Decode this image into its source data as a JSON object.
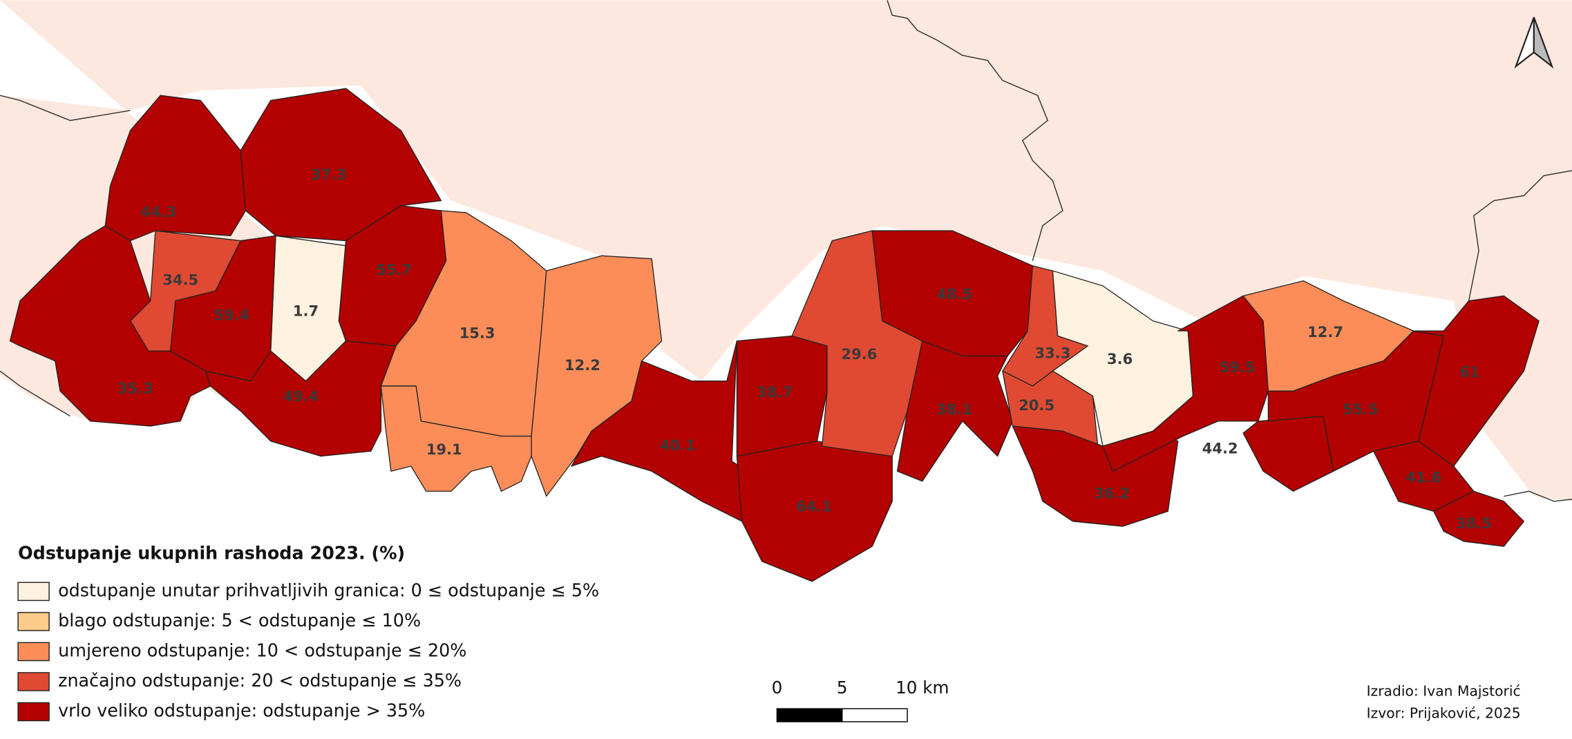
{
  "map": {
    "regions": [
      {
        "label": 44.3,
        "color": "#b30000"
      },
      {
        "label": 37.3,
        "color": "#b30000"
      },
      {
        "label": 34.5,
        "color": "#e04a32"
      },
      {
        "label": 1.7,
        "color": "#fdf1df"
      },
      {
        "label": 55.7,
        "color": "#b30000"
      },
      {
        "label": 59.4,
        "color": "#b30000"
      },
      {
        "label": 35.3,
        "color": "#b30000"
      },
      {
        "label": 49.4,
        "color": "#b30000"
      },
      {
        "label": 15.3,
        "color": "#fc8d59"
      },
      {
        "label": 12.2,
        "color": "#fc8d59"
      },
      {
        "label": 19.1,
        "color": "#fc8d59"
      },
      {
        "label": 40.1,
        "color": "#b30000"
      },
      {
        "label": 38.7,
        "color": "#b30000"
      },
      {
        "label": 64.1,
        "color": "#b30000"
      },
      {
        "label": 29.6,
        "color": "#e04a32"
      },
      {
        "label": 48.5,
        "color": "#b30000"
      },
      {
        "label": 38.1,
        "color": "#b30000"
      },
      {
        "label": 33.3,
        "color": "#e04a32"
      },
      {
        "label": 3.6,
        "color": "#fdf1df"
      },
      {
        "label": 20.5,
        "color": "#e04a32"
      },
      {
        "label": 36.2,
        "color": "#b30000"
      },
      {
        "label": 59.5,
        "color": "#b30000"
      },
      {
        "label": 44.2,
        "color": "#b30000"
      },
      {
        "label": 12.7,
        "color": "#fc8d59"
      },
      {
        "label": 55.5,
        "color": "#b30000"
      },
      {
        "label": 61,
        "color": "#b30000"
      },
      {
        "label": 41.6,
        "color": "#b30000"
      },
      {
        "label": 38.5,
        "color": "#b30000"
      }
    ],
    "legend": {
      "title": "Odstupanje ukupnih rashoda 2023. (%)",
      "items": [
        {
          "label": "odstupanje unutar prihvatljivih granica: 0 ≤ odstupanje ≤ 5%",
          "color": "#fdf1df"
        },
        {
          "label": "blago odstupanje: 5 < odstupanje ≤ 10%",
          "color": "#fdcc8a"
        },
        {
          "label": "umjereno odstupanje: 10 < odstupanje ≤ 20%",
          "color": "#fc8d59"
        },
        {
          "label": "značajno odstupanje: 20 < odstupanje ≤ 35%",
          "color": "#e04a32"
        },
        {
          "label": "vrlo veliko odstupanje: odstupanje > 35%",
          "color": "#b30000"
        }
      ]
    },
    "scale_bar": {
      "labels": [
        "0",
        "5",
        "10 km"
      ]
    },
    "credits": [
      "Izradio: Ivan Majstorić",
      "Izvor: Prijaković, 2025"
    ]
  }
}
